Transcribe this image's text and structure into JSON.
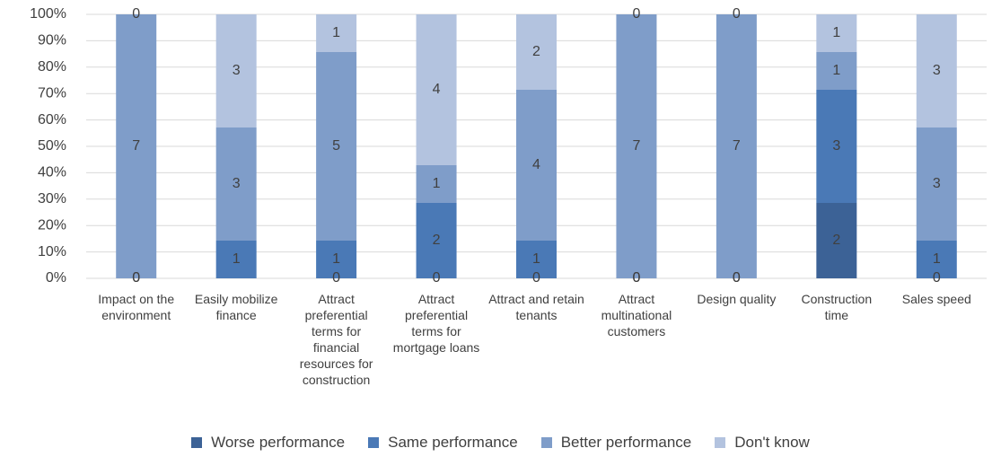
{
  "chart_data": {
    "type": "stacked_percent_bar",
    "categories": [
      "Impact on the environment",
      "Easily mobilize finance",
      "Attract preferential terms for financial resources for construction",
      "Attract preferential terms for mortgage loans",
      "Attract and retain tenants",
      "Attract multinational customers",
      "Design quality",
      "Construction time",
      "Sales speed"
    ],
    "series": [
      {
        "name": "Worse performance",
        "color": "#3c6296",
        "values": [
          0,
          null,
          0,
          0,
          0,
          0,
          0,
          2,
          0
        ]
      },
      {
        "name": "Same performance",
        "color": "#4a79b6",
        "values": [
          0,
          1,
          1,
          2,
          1,
          0,
          0,
          3,
          1
        ]
      },
      {
        "name": "Better performance",
        "color": "#7f9dc9",
        "values": [
          7,
          3,
          5,
          1,
          4,
          7,
          7,
          1,
          3
        ]
      },
      {
        "name": "Don't know",
        "color": "#b3c3df",
        "values": [
          0,
          3,
          1,
          4,
          2,
          0,
          0,
          1,
          3
        ]
      }
    ],
    "ylim": [
      0,
      100
    ],
    "yticks": [
      {
        "value": 0,
        "label": "0%"
      },
      {
        "value": 10,
        "label": "10%"
      },
      {
        "value": 20,
        "label": "20%"
      },
      {
        "value": 30,
        "label": "30%"
      },
      {
        "value": 40,
        "label": "40%"
      },
      {
        "value": 50,
        "label": "50%"
      },
      {
        "value": 60,
        "label": "60%"
      },
      {
        "value": 70,
        "label": "70%"
      },
      {
        "value": 80,
        "label": "80%"
      },
      {
        "value": 90,
        "label": "90%"
      },
      {
        "value": 100,
        "label": "100%"
      }
    ],
    "legend": "bottom"
  }
}
